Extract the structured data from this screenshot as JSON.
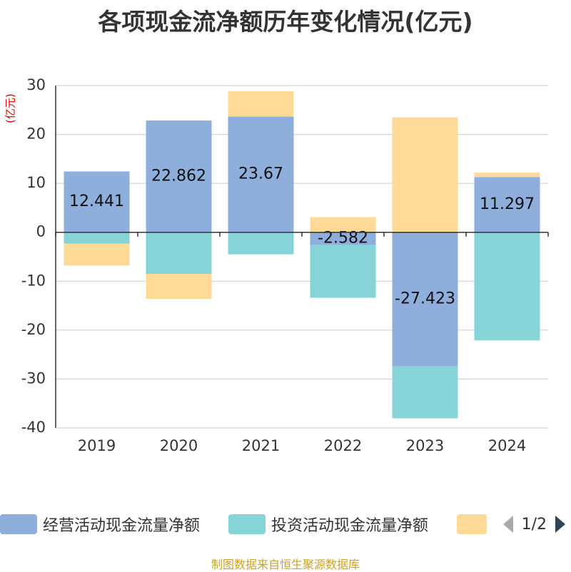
{
  "chart_data": {
    "type": "bar",
    "stacked": true,
    "title": "各项现金流净额历年变化情况(亿元)",
    "ylabel": "(亿元)",
    "categories": [
      "2019",
      "2020",
      "2021",
      "2022",
      "2023",
      "2024"
    ],
    "ylim": [
      -40,
      30
    ],
    "yticks": [
      30,
      20,
      10,
      0,
      -10,
      -20,
      -30,
      -40
    ],
    "grid": true,
    "series": [
      {
        "name": "经营活动现金流量净额",
        "color": "#8eaedb",
        "values": [
          12.441,
          22.862,
          23.67,
          -2.582,
          -27.423,
          11.297
        ],
        "show_labels": true
      },
      {
        "name": "投资活动现金流量净额",
        "color": "#86d4d8",
        "values": [
          -2.3,
          -8.5,
          -4.5,
          -10.8,
          -10.6,
          -22.1
        ],
        "show_labels": false
      },
      {
        "name": "",
        "color": "#ffd997",
        "values": [
          -4.5,
          -5.1,
          5.2,
          3.1,
          23.5,
          0.9
        ],
        "show_labels": false
      }
    ],
    "data_labels": [
      "12.441",
      "22.862",
      "23.67",
      "-2.582",
      "-27.423",
      "11.297"
    ],
    "legend": {
      "position": "bottom",
      "page": "1/2"
    }
  },
  "footer": "制图数据来自恒生聚源数据库",
  "colors": {
    "axis": "#333333",
    "grid": "#cccccc",
    "unit": "#e60000",
    "footer": "#c9a227"
  }
}
